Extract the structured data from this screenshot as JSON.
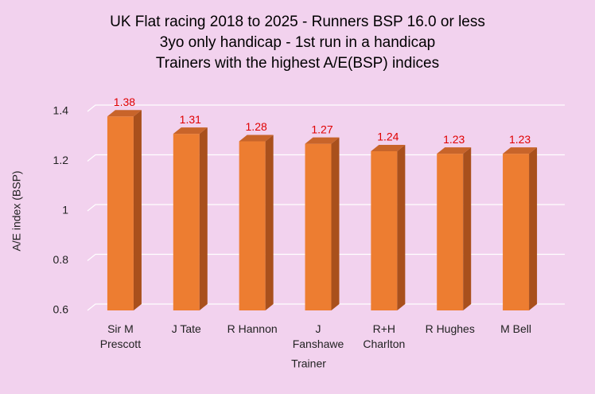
{
  "chart_data": {
    "type": "bar3d",
    "title": [
      "UK Flat racing 2018 to 2025 - Runners BSP 16.0 or less",
      "3yo only handicap - 1st run in a handicap",
      "Trainers with the highest A/E(BSP) indices"
    ],
    "x_label": "Trainer",
    "y_label": "A/E index (BSP)",
    "categories": [
      "Sir M Prescott",
      "J Tate",
      "R Hannon",
      "J Fanshawe",
      "R+H Charlton",
      "R Hughes",
      "M Bell"
    ],
    "values": [
      1.38,
      1.31,
      1.28,
      1.27,
      1.24,
      1.23,
      1.23
    ],
    "color": "#ed7d31",
    "label_color": "#e00000",
    "ylim": [
      0.6,
      1.4
    ],
    "yticks": [
      0.6,
      0.8,
      1,
      1.2,
      1.4
    ],
    "grid": true
  }
}
